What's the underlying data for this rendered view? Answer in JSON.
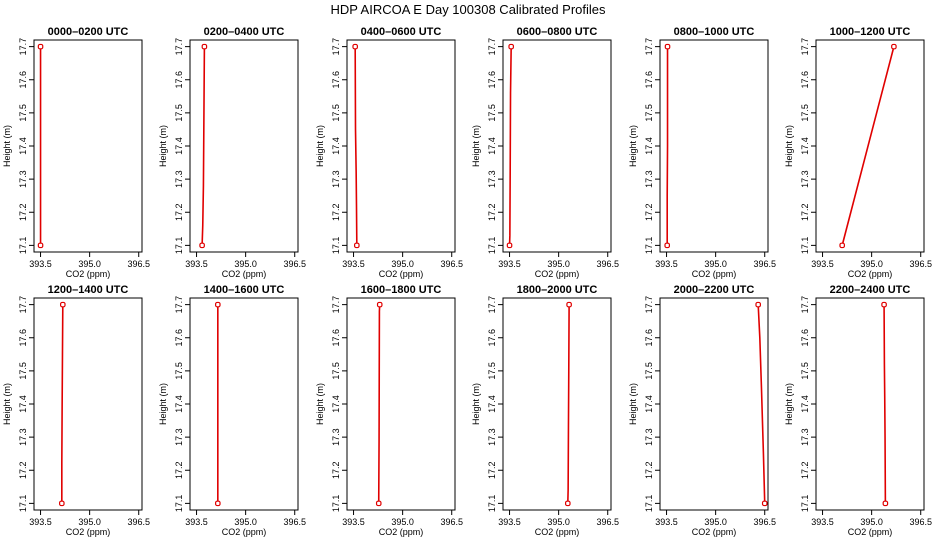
{
  "figure": {
    "title": "HDP AIRCOA E  Day 100308  Calibrated Profiles"
  },
  "colors": {
    "profile_line": "#e00000",
    "marker": "#e00000",
    "axis": "#000000"
  },
  "chart_data": [
    {
      "type": "line",
      "title": "0000–0200 UTC",
      "xlabel": "CO2 (ppm)",
      "ylabel": "Height (m)",
      "xlim": [
        393.3,
        396.6
      ],
      "ylim": [
        17.08,
        17.72
      ],
      "xticks": [
        "393.5",
        "395.0",
        "396.5"
      ],
      "yticks": [
        "17.1",
        "17.2",
        "17.3",
        "17.4",
        "17.5",
        "17.6",
        "17.7"
      ],
      "grid": false,
      "series": [
        {
          "x": [
            393.5,
            393.5,
            393.5,
            393.5,
            393.5
          ],
          "y": [
            17.1,
            17.25,
            17.4,
            17.58,
            17.7
          ]
        }
      ]
    },
    {
      "type": "line",
      "title": "0200–0400 UTC",
      "xlabel": "CO2 (ppm)",
      "ylabel": "Height (m)",
      "xlim": [
        393.3,
        396.6
      ],
      "ylim": [
        17.08,
        17.72
      ],
      "xticks": [
        "393.5",
        "395.0",
        "396.5"
      ],
      "yticks": [
        "17.1",
        "17.2",
        "17.3",
        "17.4",
        "17.5",
        "17.6",
        "17.7"
      ],
      "grid": false,
      "series": [
        {
          "x": [
            393.67,
            393.69,
            393.71,
            393.72,
            393.74
          ],
          "y": [
            17.1,
            17.16,
            17.28,
            17.42,
            17.7
          ]
        }
      ]
    },
    {
      "type": "line",
      "title": "0400–0600 UTC",
      "xlabel": "CO2 (ppm)",
      "ylabel": "Height (m)",
      "xlim": [
        393.3,
        396.6
      ],
      "ylim": [
        17.08,
        17.72
      ],
      "xticks": [
        "393.5",
        "395.0",
        "396.5"
      ],
      "yticks": [
        "17.1",
        "17.2",
        "17.3",
        "17.4",
        "17.5",
        "17.6",
        "17.7"
      ],
      "grid": false,
      "series": [
        {
          "x": [
            393.6,
            393.59,
            393.58,
            393.56,
            393.55
          ],
          "y": [
            17.1,
            17.22,
            17.32,
            17.45,
            17.7
          ]
        }
      ]
    },
    {
      "type": "line",
      "title": "0600–0800 UTC",
      "xlabel": "CO2 (ppm)",
      "ylabel": "Height (m)",
      "xlim": [
        393.3,
        396.6
      ],
      "ylim": [
        17.08,
        17.72
      ],
      "xticks": [
        "393.5",
        "395.0",
        "396.5"
      ],
      "yticks": [
        "17.1",
        "17.2",
        "17.3",
        "17.4",
        "17.5",
        "17.6",
        "17.7"
      ],
      "grid": false,
      "series": [
        {
          "x": [
            393.5,
            393.51,
            393.52,
            393.53,
            393.55
          ],
          "y": [
            17.1,
            17.13,
            17.33,
            17.56,
            17.7
          ]
        }
      ]
    },
    {
      "type": "line",
      "title": "0800–1000 UTC",
      "xlabel": "CO2 (ppm)",
      "ylabel": "Height (m)",
      "xlim": [
        393.3,
        396.6
      ],
      "ylim": [
        17.08,
        17.72
      ],
      "xticks": [
        "393.5",
        "395.0",
        "396.5"
      ],
      "yticks": [
        "17.1",
        "17.2",
        "17.3",
        "17.4",
        "17.5",
        "17.6",
        "17.7"
      ],
      "grid": false,
      "series": [
        {
          "x": [
            393.52,
            393.52,
            393.53,
            393.53,
            393.53
          ],
          "y": [
            17.1,
            17.25,
            17.4,
            17.55,
            17.7
          ]
        }
      ]
    },
    {
      "type": "line",
      "title": "1000–1200 UTC",
      "xlabel": "CO2 (ppm)",
      "ylabel": "Height (m)",
      "xlim": [
        393.3,
        396.6
      ],
      "ylim": [
        17.08,
        17.72
      ],
      "xticks": [
        "393.5",
        "395.0",
        "396.5"
      ],
      "yticks": [
        "17.1",
        "17.2",
        "17.3",
        "17.4",
        "17.5",
        "17.6",
        "17.7"
      ],
      "grid": false,
      "series": [
        {
          "x": [
            394.1,
            395.68
          ],
          "y": [
            17.1,
            17.7
          ]
        }
      ]
    },
    {
      "type": "line",
      "title": "1200–1400 UTC",
      "xlabel": "CO2 (ppm)",
      "ylabel": "Height (m)",
      "xlim": [
        393.3,
        396.6
      ],
      "ylim": [
        17.08,
        17.72
      ],
      "xticks": [
        "393.5",
        "395.0",
        "396.5"
      ],
      "yticks": [
        "17.1",
        "17.2",
        "17.3",
        "17.4",
        "17.5",
        "17.6",
        "17.7"
      ],
      "grid": false,
      "series": [
        {
          "x": [
            394.15,
            394.15,
            394.16,
            394.17,
            394.18
          ],
          "y": [
            17.1,
            17.22,
            17.4,
            17.55,
            17.7
          ]
        }
      ]
    },
    {
      "type": "line",
      "title": "1400–1600 UTC",
      "xlabel": "CO2 (ppm)",
      "ylabel": "Height (m)",
      "xlim": [
        393.3,
        396.6
      ],
      "ylim": [
        17.08,
        17.72
      ],
      "xticks": [
        "393.5",
        "395.0",
        "396.5"
      ],
      "yticks": [
        "17.1",
        "17.2",
        "17.3",
        "17.4",
        "17.5",
        "17.6",
        "17.7"
      ],
      "grid": false,
      "series": [
        {
          "x": [
            394.15,
            394.15,
            394.15,
            394.15,
            394.15
          ],
          "y": [
            17.1,
            17.22,
            17.35,
            17.52,
            17.7
          ]
        }
      ]
    },
    {
      "type": "line",
      "title": "1600–1800 UTC",
      "xlabel": "CO2 (ppm)",
      "ylabel": "Height (m)",
      "xlim": [
        393.3,
        396.6
      ],
      "ylim": [
        17.08,
        17.72
      ],
      "xticks": [
        "393.5",
        "395.0",
        "396.5"
      ],
      "yticks": [
        "17.1",
        "17.2",
        "17.3",
        "17.4",
        "17.5",
        "17.6",
        "17.7"
      ],
      "grid": false,
      "series": [
        {
          "x": [
            394.27,
            394.27,
            394.28,
            394.29,
            394.3
          ],
          "y": [
            17.1,
            17.12,
            17.29,
            17.68,
            17.7
          ]
        }
      ]
    },
    {
      "type": "line",
      "title": "1800–2000 UTC",
      "xlabel": "CO2 (ppm)",
      "ylabel": "Height (m)",
      "xlim": [
        393.3,
        396.6
      ],
      "ylim": [
        17.08,
        17.72
      ],
      "xticks": [
        "393.5",
        "395.0",
        "396.5"
      ],
      "yticks": [
        "17.1",
        "17.2",
        "17.3",
        "17.4",
        "17.5",
        "17.6",
        "17.7"
      ],
      "grid": false,
      "series": [
        {
          "x": [
            395.28,
            395.29,
            395.3,
            395.31,
            395.32
          ],
          "y": [
            17.1,
            17.14,
            17.33,
            17.5,
            17.7
          ]
        }
      ]
    },
    {
      "type": "line",
      "title": "2000–2200 UTC",
      "xlabel": "CO2 (ppm)",
      "ylabel": "Height (m)",
      "xlim": [
        393.3,
        396.6
      ],
      "ylim": [
        17.08,
        17.72
      ],
      "xticks": [
        "393.5",
        "395.0",
        "396.5"
      ],
      "yticks": [
        "17.1",
        "17.2",
        "17.3",
        "17.4",
        "17.5",
        "17.6",
        "17.7"
      ],
      "grid": false,
      "series": [
        {
          "x": [
            396.5,
            396.46,
            396.4,
            396.35,
            396.3
          ],
          "y": [
            17.1,
            17.25,
            17.45,
            17.6,
            17.7
          ]
        }
      ]
    },
    {
      "type": "line",
      "title": "2200–2400 UTC",
      "xlabel": "CO2 (ppm)",
      "ylabel": "Height (m)",
      "xlim": [
        393.3,
        396.6
      ],
      "ylim": [
        17.08,
        17.72
      ],
      "xticks": [
        "393.5",
        "395.0",
        "396.5"
      ],
      "yticks": [
        "17.1",
        "17.2",
        "17.3",
        "17.4",
        "17.5",
        "17.6",
        "17.7"
      ],
      "grid": false,
      "series": [
        {
          "x": [
            395.42,
            395.41,
            395.4,
            395.39,
            395.38
          ],
          "y": [
            17.1,
            17.3,
            17.42,
            17.52,
            17.7
          ]
        }
      ]
    }
  ]
}
